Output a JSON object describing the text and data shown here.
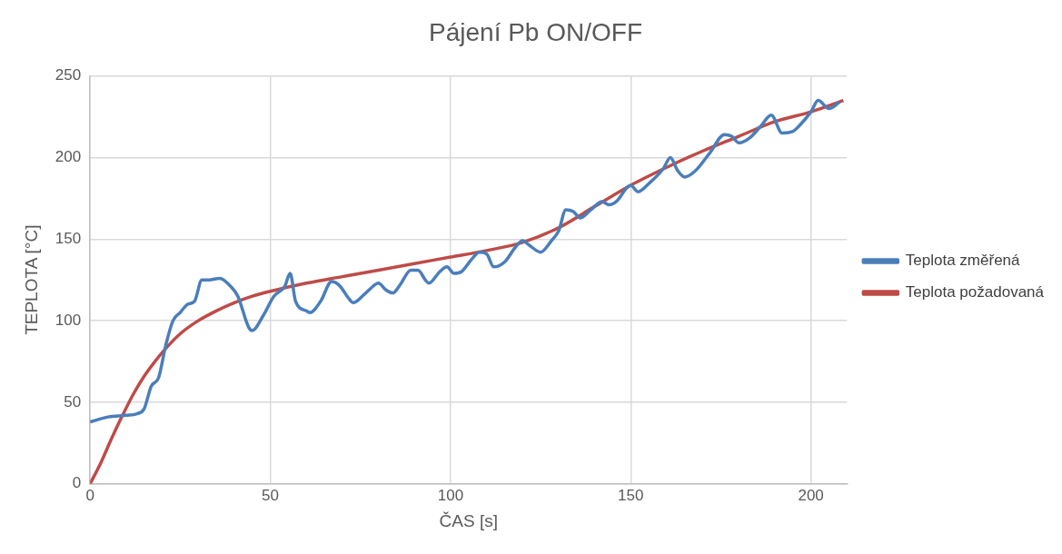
{
  "chart_data": {
    "type": "line",
    "title": "Pájení Pb ON/OFF",
    "xlabel": "ČAS [s]",
    "ylabel": "TEPLOTA [°C]",
    "xlim": [
      0,
      210
    ],
    "xticks": [
      0,
      50,
      100,
      150,
      200
    ],
    "ylim": [
      0,
      250
    ],
    "yticks": [
      0,
      50,
      100,
      150,
      200,
      250
    ],
    "grid": true,
    "legend": "right",
    "marker": "none",
    "line_style": "solid",
    "series": [
      {
        "name": "Teplota změřená",
        "color": "#4a7ebb",
        "x": [
          0,
          5,
          10,
          13,
          15,
          17,
          19,
          21,
          23,
          25,
          27,
          29,
          31,
          33,
          36,
          39,
          41,
          44,
          45,
          48,
          51,
          54,
          55.5,
          57,
          60,
          61,
          64,
          67,
          69,
          72,
          73,
          76,
          79,
          80,
          82,
          84,
          86,
          89,
          91,
          93,
          94,
          97,
          99,
          101,
          103,
          106,
          108,
          110,
          112,
          115,
          118,
          120,
          122,
          125,
          128,
          130,
          132,
          134,
          136,
          139,
          142,
          144,
          146,
          150,
          152,
          155,
          159,
          161,
          163,
          165,
          168,
          172,
          176,
          178,
          180,
          183,
          186,
          189,
          192,
          195,
          197,
          200,
          202,
          205,
          208
        ],
        "values": [
          38,
          41,
          42,
          43,
          46,
          60,
          65,
          85,
          100,
          105,
          110,
          112,
          125,
          125,
          126,
          121,
          115,
          96,
          94,
          103,
          115,
          121,
          129,
          112,
          106,
          105,
          112,
          124,
          122,
          113,
          111,
          116,
          122,
          123,
          119,
          117,
          122,
          131,
          131,
          125,
          123,
          130,
          133,
          129,
          130,
          138,
          142,
          141,
          133,
          136,
          145,
          149,
          146,
          142,
          149,
          155,
          168,
          167,
          163,
          168,
          173,
          171,
          173,
          183,
          179,
          184,
          193,
          200,
          192,
          188,
          192,
          203,
          214,
          213,
          209,
          212,
          219,
          226,
          215,
          216,
          220,
          228,
          235,
          230,
          234
        ]
      },
      {
        "name": "Teplota požadovaná",
        "color": "#be4b48",
        "x": [
          0,
          3,
          6,
          9,
          12,
          15,
          18,
          21,
          25,
          30,
          35,
          40,
          45,
          50,
          60,
          70,
          80,
          90,
          100,
          110,
          120,
          130,
          140,
          150,
          160,
          170,
          180,
          190,
          200,
          209
        ],
        "values": [
          0,
          13,
          28,
          42,
          55,
          66,
          75,
          83,
          92,
          100,
          106,
          111,
          115,
          118,
          123,
          127,
          131,
          135,
          139,
          143,
          148,
          157,
          170,
          183,
          194,
          204,
          213,
          222,
          228,
          235
        ]
      }
    ]
  }
}
